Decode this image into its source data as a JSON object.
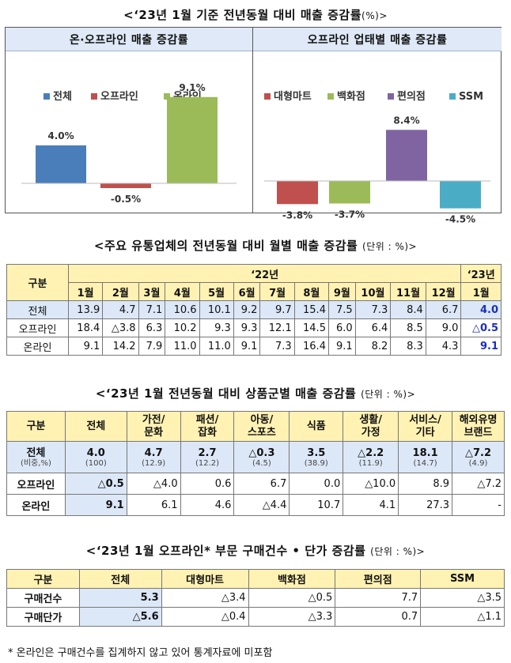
{
  "section1": {
    "title": "<‘23년 1월 기준 전년동월 대비 매출 증감률",
    "unit": "(%)>"
  },
  "colors": {
    "total": "#4a7ebb",
    "offline": "#c0504d",
    "online": "#9bbb59",
    "purple": "#8064a2",
    "ssm": "#4bacc6",
    "header_bg": "#fff2b3",
    "highlight_bg": "#dce8f7",
    "accent_text": "#1b2fbf"
  },
  "chart_data": [
    {
      "type": "bar",
      "title": "온·오프라인 매출 증감률",
      "categories": [
        "전체",
        "오프라인",
        "온라인"
      ],
      "values": [
        4.0,
        -0.5,
        9.1
      ],
      "labels": [
        "4.0%",
        "-0.5%",
        "9.1%"
      ],
      "colors": [
        "#4a7ebb",
        "#c0504d",
        "#9bbb59"
      ],
      "legend": "top"
    },
    {
      "type": "bar",
      "title": "오프라인 업태별 매출 증감률",
      "categories": [
        "대형마트",
        "백화점",
        "편의점",
        "SSM"
      ],
      "values": [
        -3.8,
        -3.7,
        8.4,
        -4.5
      ],
      "labels": [
        "-3.8%",
        "-3.7%",
        "8.4%",
        "-4.5%"
      ],
      "colors": [
        "#c0504d",
        "#9bbb59",
        "#8064a2",
        "#4bacc6"
      ],
      "legend": "top"
    }
  ],
  "table1": {
    "title": "<주요 유통업체의 전년동월 대비 월별 매출 증감률",
    "unit": "(단위 : %)>",
    "corner": "구분",
    "year22": "‘22년",
    "year23": "‘23년",
    "months": [
      "1월",
      "2월",
      "3월",
      "4월",
      "5월",
      "6월",
      "7월",
      "8월",
      "9월",
      "10월",
      "11월",
      "12월",
      "1월"
    ],
    "rows": [
      {
        "label": "전체",
        "values": [
          "13.9",
          "4.7",
          "7.1",
          "10.6",
          "10.1",
          "9.2",
          "9.7",
          "15.4",
          "7.5",
          "7.3",
          "8.4",
          "6.7",
          "4.0"
        ]
      },
      {
        "label": "오프라인",
        "values": [
          "18.4",
          "△3.8",
          "6.3",
          "10.2",
          "9.3",
          "9.3",
          "12.1",
          "14.5",
          "6.0",
          "6.4",
          "8.5",
          "9.0",
          "△0.5"
        ]
      },
      {
        "label": "온라인",
        "values": [
          "9.1",
          "14.2",
          "7.9",
          "11.0",
          "11.0",
          "9.1",
          "7.3",
          "16.4",
          "9.1",
          "8.2",
          "8.3",
          "4.3",
          "9.1"
        ]
      }
    ]
  },
  "table2": {
    "title": "<‘23년 1월 전년동월 대비 상품군별 매출 증감률",
    "unit": "(단위 : %)>",
    "headers": [
      [
        "구분"
      ],
      [
        "전체"
      ],
      [
        "가전/",
        "문화"
      ],
      [
        "패션/",
        "잡화"
      ],
      [
        "아동/",
        "스포츠"
      ],
      [
        "식품"
      ],
      [
        "생활/",
        "가정"
      ],
      [
        "서비스/",
        "기타"
      ],
      [
        "해외유명",
        "브랜드"
      ]
    ],
    "total_row": {
      "label": "전체",
      "sublabel": "(비중,%)",
      "values": [
        "4.0",
        "4.7",
        "2.7",
        "△0.3",
        "3.5",
        "△2.2",
        "18.1",
        "△7.2"
      ],
      "shares": [
        "(100)",
        "(12.9)",
        "(12.2)",
        "(4.5)",
        "(38.9)",
        "(11.9)",
        "(14.7)",
        "(4.9)"
      ]
    },
    "rows": [
      {
        "label": "오프라인",
        "values": [
          "△0.5",
          "△4.0",
          "0.6",
          "6.7",
          "0.0",
          "△10.0",
          "8.9",
          "△7.2"
        ]
      },
      {
        "label": "온라인",
        "values": [
          "9.1",
          "6.1",
          "4.6",
          "△4.4",
          "10.7",
          "4.1",
          "27.3",
          "-"
        ]
      }
    ]
  },
  "table3": {
    "title": "<‘23년 1월 오프라인* 부문 구매건수 • 단가 증감률",
    "unit": "(단위 : %)>",
    "headers": [
      "구분",
      "전체",
      "대형마트",
      "백화점",
      "편의점",
      "SSM"
    ],
    "rows": [
      {
        "label": "구매건수",
        "values": [
          "5.3",
          "△3.4",
          "△0.5",
          "7.7",
          "△3.5"
        ]
      },
      {
        "label": "구매단가",
        "values": [
          "△5.6",
          "△0.4",
          "△3.3",
          "0.7",
          "△1.1"
        ]
      }
    ]
  },
  "footnote": "* 온라인은 구매건수를 집계하지 않고 있어 통계자료에 미포함"
}
